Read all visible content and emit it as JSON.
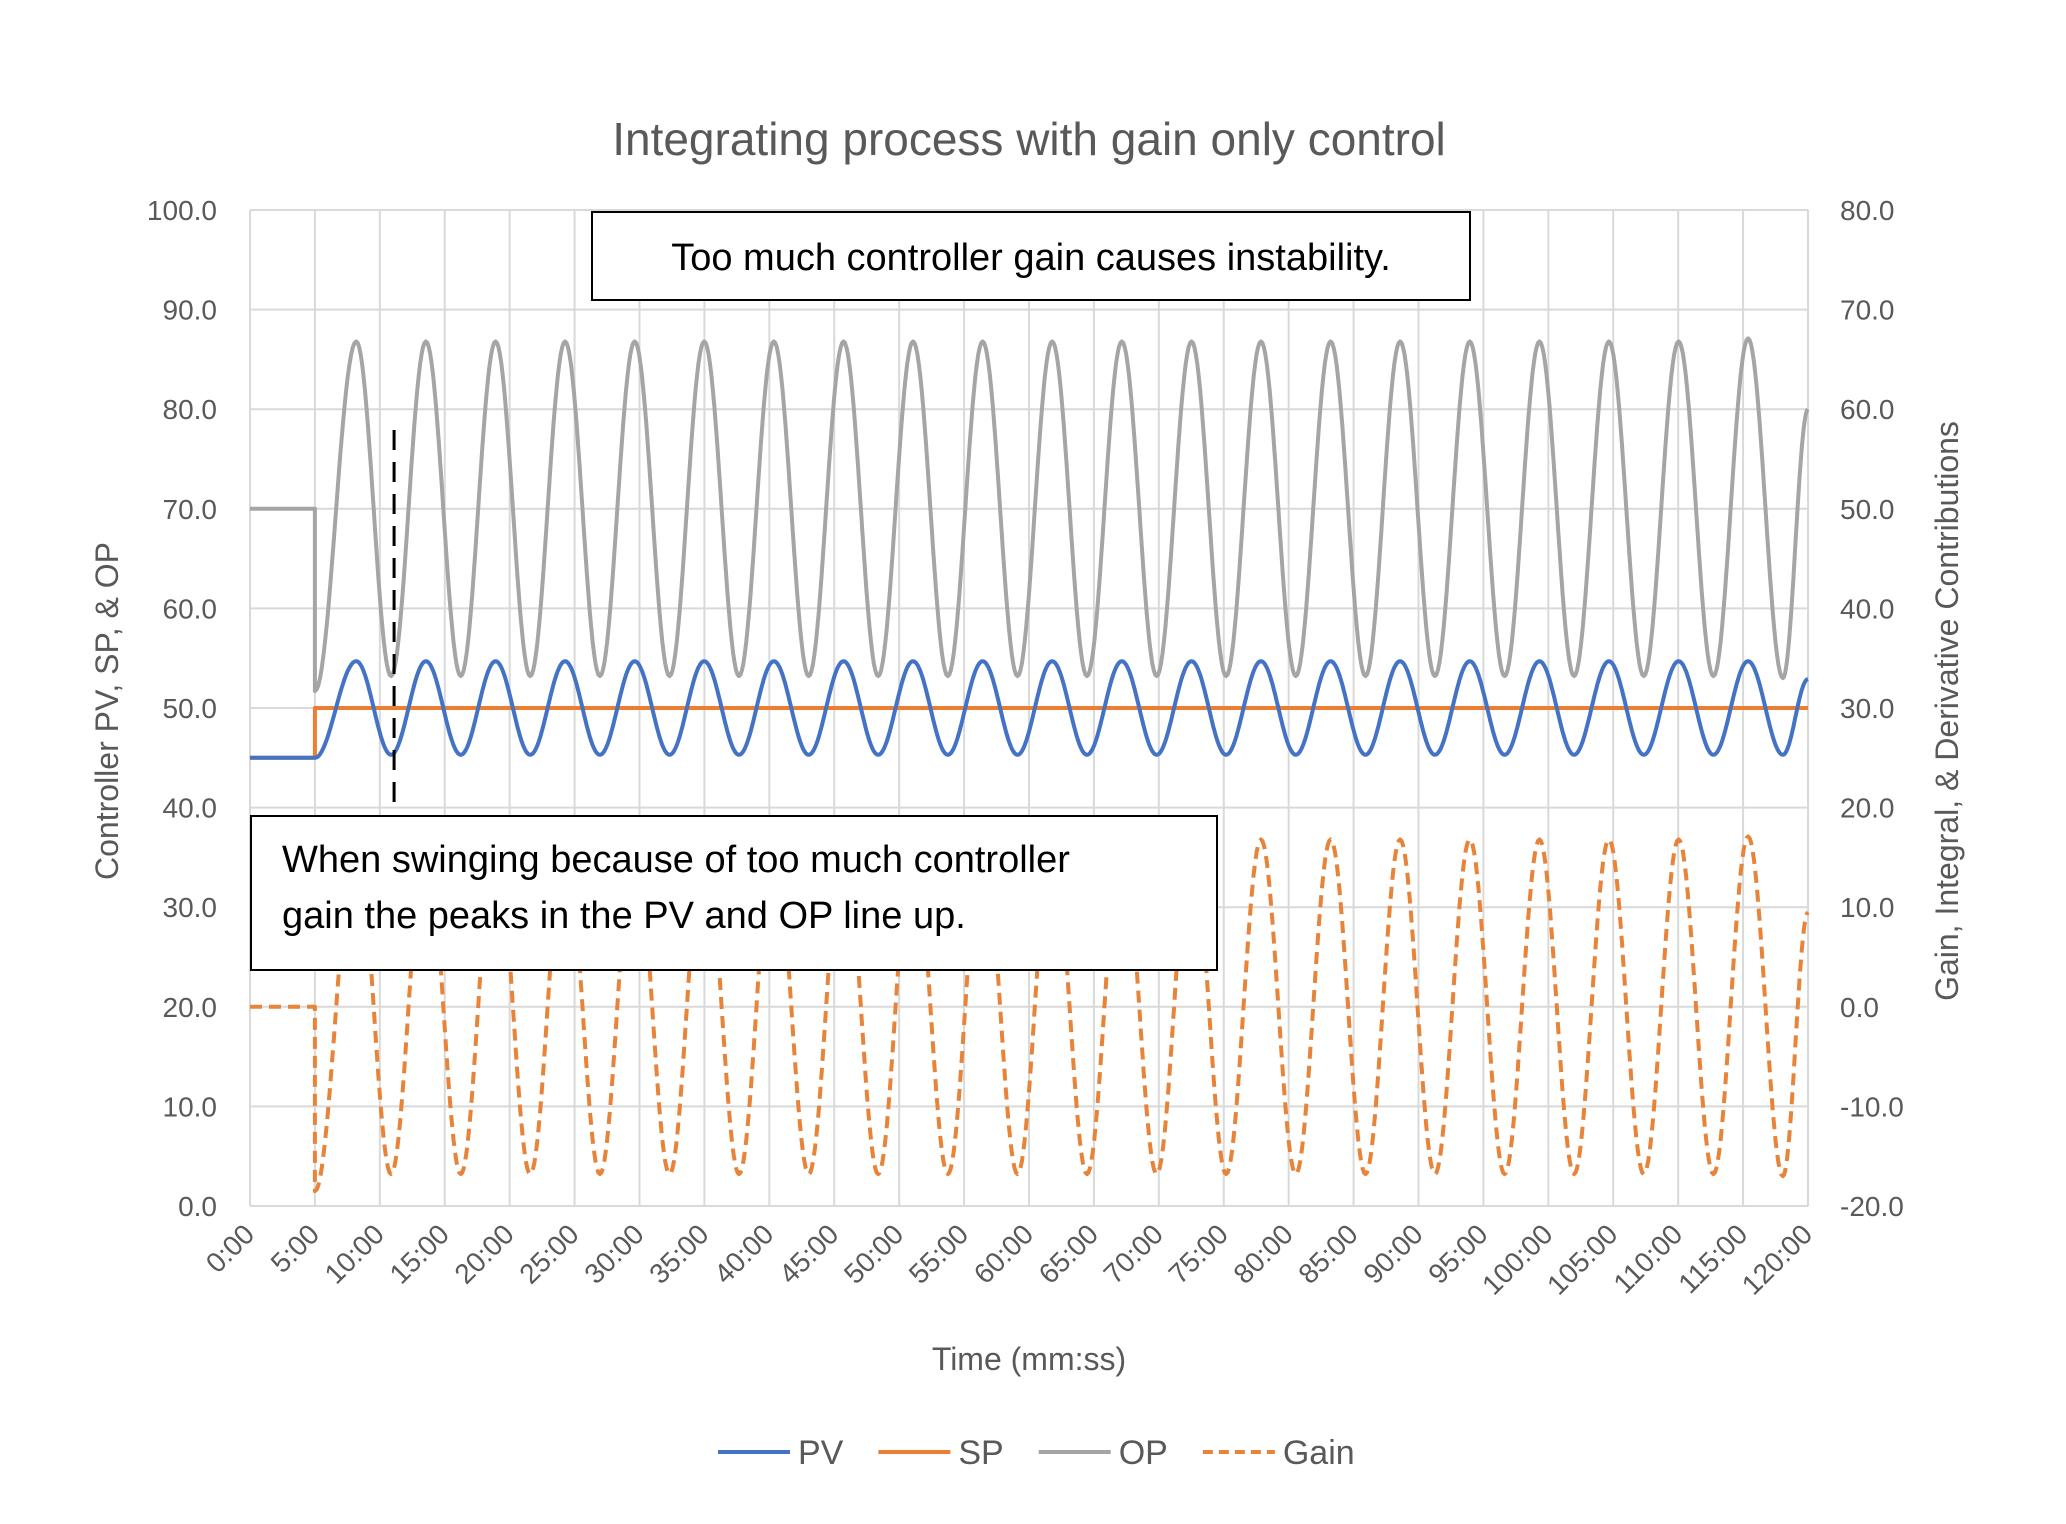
{
  "chart_data": {
    "type": "line",
    "title": "Integrating process with gain only control",
    "xlabel": "Time (mm:ss)",
    "ylabel": "Controller PV, SP, & OP",
    "y2label": "Gain, Integral, & Derivative Contributions",
    "ylim": [
      0,
      100
    ],
    "y2lim": [
      -20,
      80
    ],
    "xlim": [
      "0:00",
      "120:00"
    ],
    "grid": true,
    "legend_position": "bottom",
    "x_ticks": [
      "0:00",
      "5:00",
      "10:00",
      "15:00",
      "20:00",
      "25:00",
      "30:00",
      "35:00",
      "40:00",
      "45:00",
      "50:00",
      "55:00",
      "60:00",
      "65:00",
      "70:00",
      "75:00",
      "80:00",
      "85:00",
      "90:00",
      "95:00",
      "100:00",
      "105:00",
      "110:00",
      "115:00",
      "120:00"
    ],
    "y_ticks": [
      "0.0",
      "10.0",
      "20.0",
      "30.0",
      "40.0",
      "50.0",
      "60.0",
      "70.0",
      "80.0",
      "90.0",
      "100.0"
    ],
    "y2_ticks": [
      "-20.0",
      "-10.0",
      "0.0",
      "10.0",
      "20.0",
      "30.0",
      "40.0",
      "50.0",
      "60.0",
      "70.0",
      "80.0"
    ],
    "x": [
      "0:00",
      "5:00",
      "5:00",
      "8:11",
      "10:52",
      "13:33",
      "16:14",
      "18:55",
      "21:35",
      "24:16",
      "26:57",
      "29:38",
      "32:19",
      "34:59",
      "37:40",
      "40:21",
      "43:02",
      "45:43",
      "48:23",
      "51:04",
      "53:45",
      "56:26",
      "59:07",
      "61:47",
      "64:28",
      "67:09",
      "69:50",
      "72:31",
      "75:11",
      "77:52",
      "80:33",
      "83:14",
      "85:55",
      "88:35",
      "91:16",
      "93:57",
      "96:38",
      "99:19",
      "101:59",
      "104:40",
      "107:21",
      "110:02",
      "112:43",
      "115:23",
      "118:04",
      "120:00"
    ],
    "series": [
      {
        "name": "PV",
        "axis": "primary",
        "color": "#4472c4",
        "dashed": false,
        "values": [
          45,
          45,
          45,
          54.7,
          45.3,
          54.7,
          45.3,
          54.7,
          45.3,
          54.7,
          45.3,
          54.7,
          45.3,
          54.7,
          45.3,
          54.7,
          45.3,
          54.7,
          45.3,
          54.7,
          45.3,
          54.7,
          45.3,
          54.7,
          45.3,
          54.7,
          45.3,
          54.7,
          45.3,
          54.7,
          45.3,
          54.7,
          45.3,
          54.7,
          45.3,
          54.7,
          45.3,
          54.7,
          45.3,
          54.7,
          45.3,
          54.7,
          45.3,
          54.7,
          45.3,
          52.9
        ]
      },
      {
        "name": "SP",
        "axis": "primary",
        "color": "#ed7d31",
        "dashed": false,
        "values": [
          45,
          45,
          50,
          50,
          50,
          50,
          50,
          50,
          50,
          50,
          50,
          50,
          50,
          50,
          50,
          50,
          50,
          50,
          50,
          50,
          50,
          50,
          50,
          50,
          50,
          50,
          50,
          50,
          50,
          50,
          50,
          50,
          50,
          50,
          50,
          50,
          50,
          50,
          50,
          50,
          50,
          50,
          50,
          50,
          50,
          50
        ]
      },
      {
        "name": "OP",
        "axis": "primary",
        "color": "#a5a5a5",
        "dashed": false,
        "values": [
          70,
          70,
          51.7,
          86.8,
          53.2,
          86.8,
          53.2,
          86.8,
          53.2,
          86.8,
          53.2,
          86.8,
          53.2,
          86.8,
          53.2,
          86.8,
          53.2,
          86.8,
          53.2,
          86.8,
          53.2,
          86.8,
          53.2,
          86.8,
          53.2,
          86.8,
          53.2,
          86.8,
          53.2,
          86.8,
          53.2,
          86.8,
          53.2,
          86.8,
          53.2,
          86.8,
          53.2,
          86.8,
          53.2,
          86.8,
          53.2,
          86.8,
          53.2,
          87.1,
          53.0,
          80.0
        ]
      },
      {
        "name": "Gain",
        "axis": "secondary",
        "color": "#e8833a",
        "dashed": true,
        "values": [
          0,
          0,
          -18.5,
          16.8,
          -16.8,
          16.8,
          -16.8,
          16.8,
          -16.8,
          16.8,
          -16.8,
          16.8,
          -16.8,
          16.8,
          -16.8,
          16.8,
          -16.8,
          16.8,
          -16.8,
          16.8,
          -16.8,
          16.8,
          -16.8,
          16.8,
          -16.8,
          16.8,
          -16.8,
          16.8,
          -16.8,
          16.8,
          -16.8,
          16.8,
          -16.8,
          16.8,
          -16.8,
          16.8,
          -16.8,
          16.8,
          -16.8,
          16.8,
          -16.8,
          16.8,
          -16.8,
          17.1,
          -17.0,
          9.5
        ]
      }
    ],
    "annotations": [
      {
        "text": "Too much controller gain causes instability."
      },
      {
        "lines": [
          "When swinging because of too much controller",
          "gain the peaks in the PV and OP line up."
        ]
      }
    ],
    "marker_line_time": "10:52"
  }
}
